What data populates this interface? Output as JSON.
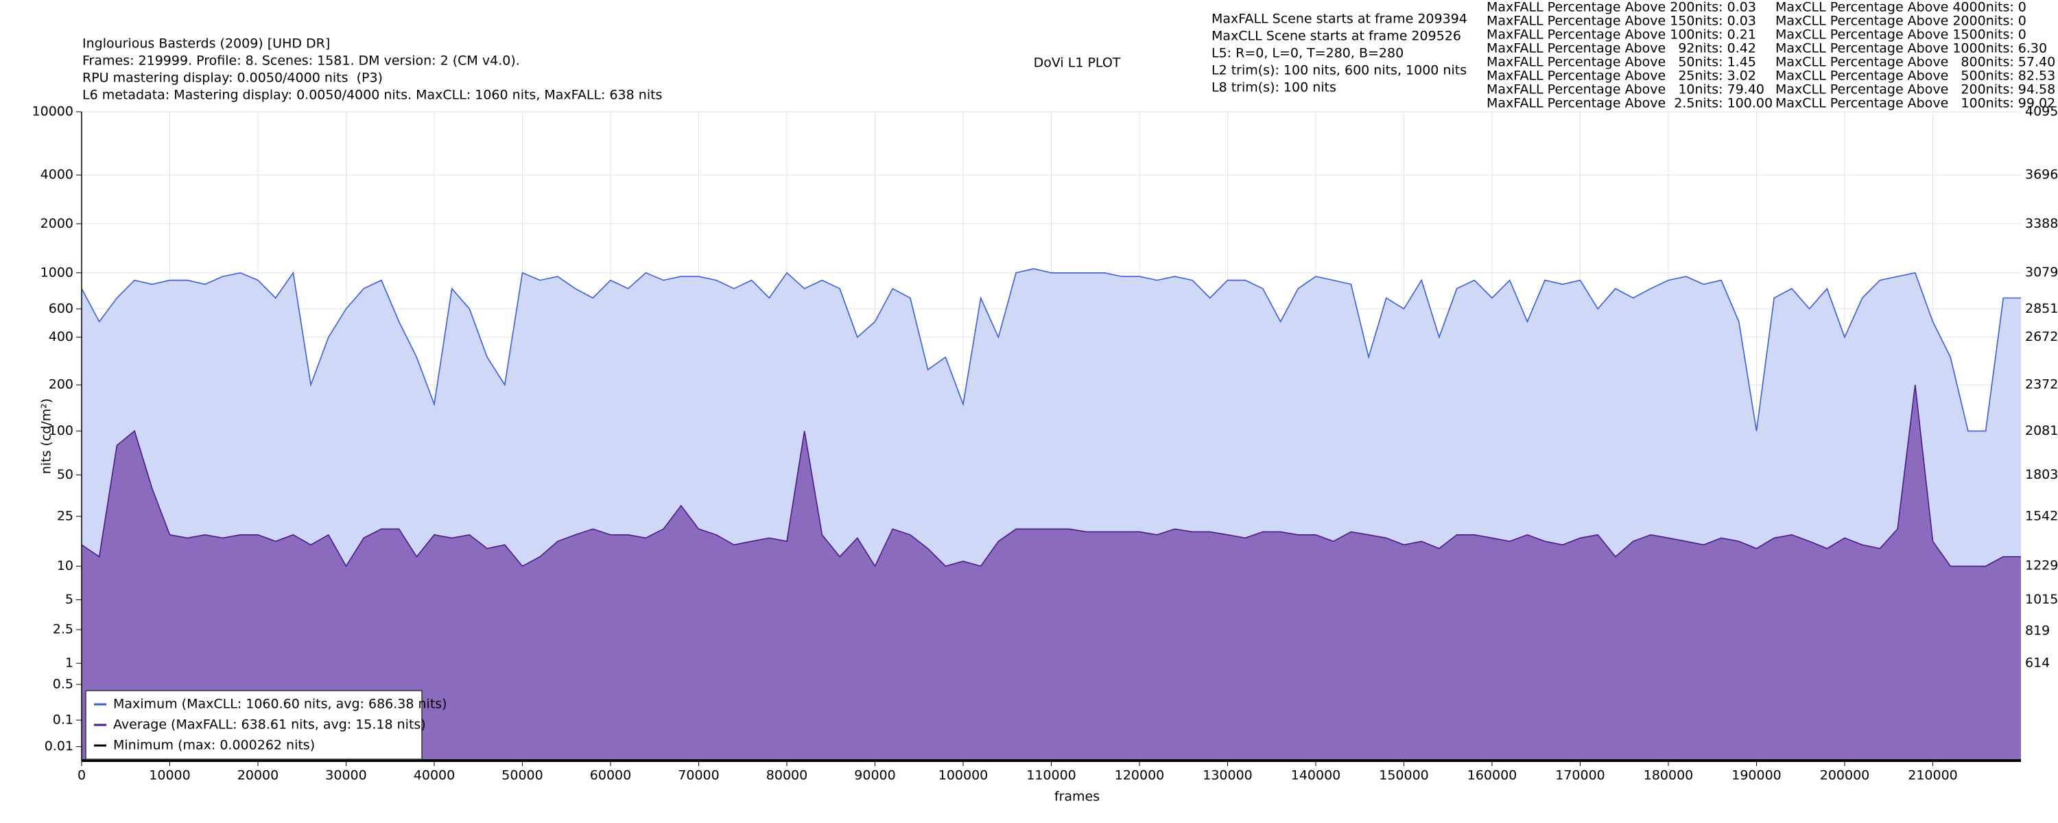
{
  "chart_data": {
    "type": "line",
    "title": "DoVi L1 PLOT",
    "header_lines": [
      "Inglourious Basterds (2009) [UHD DR]",
      "Frames: 219999. Profile: 8. Scenes: 1581. DM version: 2 (CM v4.0).",
      "RPU mastering display: 0.0050/4000 nits  (P3)",
      "L6 metadata: Mastering display: 0.0050/4000 nits. MaxCLL: 1060 nits, MaxFALL: 638 nits"
    ],
    "scene_info": [
      "MaxFALL Scene starts at frame 209394",
      "MaxCLL Scene starts at frame 209526",
      "L5: R=0, L=0, T=280, B=280",
      "L2 trim(s): 100 nits, 600 nits, 1000 nits",
      "L8 trim(s): 100 nits"
    ],
    "maxfall_percentages": [
      "MaxFALL Percentage Above 200nits: 0.03",
      "MaxFALL Percentage Above 150nits: 0.03",
      "MaxFALL Percentage Above 100nits: 0.21",
      "MaxFALL Percentage Above   92nits: 0.42",
      "MaxFALL Percentage Above   50nits: 1.45",
      "MaxFALL Percentage Above   25nits: 3.02",
      "MaxFALL Percentage Above   10nits: 79.40",
      "MaxFALL Percentage Above  2.5nits: 100.00"
    ],
    "maxcll_percentages": [
      "MaxCLL Percentage Above 4000nits: 0",
      "MaxCLL Percentage Above 2000nits: 0",
      "MaxCLL Percentage Above 1500nits: 0",
      "MaxCLL Percentage Above 1000nits: 6.30",
      "MaxCLL Percentage Above   800nits: 57.40",
      "MaxCLL Percentage Above   500nits: 82.53",
      "MaxCLL Percentage Above   200nits: 94.58",
      "MaxCLL Percentage Above   100nits: 99.02"
    ],
    "x_label": "frames",
    "y_label": "nits (cd/m²)",
    "y_scale": "pq",
    "grid": true,
    "legend": "lower left",
    "xlim": [
      0,
      219999
    ],
    "xticks": [
      0,
      10000,
      20000,
      30000,
      40000,
      50000,
      60000,
      70000,
      80000,
      90000,
      100000,
      110000,
      120000,
      130000,
      140000,
      150000,
      160000,
      170000,
      180000,
      190000,
      200000,
      210000
    ],
    "ylim": [
      0,
      10000
    ],
    "yticks": [
      0.01,
      0.1,
      0.5,
      1,
      2.5,
      5,
      10,
      25,
      50,
      100,
      200,
      400,
      600,
      1000,
      2000,
      4000,
      10000
    ],
    "y2lim": [
      0,
      4095
    ],
    "y2ticks": [
      614,
      819,
      1015,
      1229,
      1542,
      1803,
      2081,
      2372,
      2672,
      2851,
      3079,
      3388,
      3696,
      4095
    ],
    "x": [
      0,
      2000,
      4000,
      6000,
      8000,
      10000,
      12000,
      14000,
      16000,
      18000,
      20000,
      22000,
      24000,
      26000,
      28000,
      30000,
      32000,
      34000,
      36000,
      38000,
      40000,
      42000,
      44000,
      46000,
      48000,
      50000,
      52000,
      54000,
      56000,
      58000,
      60000,
      62000,
      64000,
      66000,
      68000,
      70000,
      72000,
      74000,
      76000,
      78000,
      80000,
      82000,
      84000,
      86000,
      88000,
      90000,
      92000,
      94000,
      96000,
      98000,
      100000,
      102000,
      104000,
      106000,
      108000,
      110000,
      112000,
      114000,
      116000,
      118000,
      120000,
      122000,
      124000,
      126000,
      128000,
      130000,
      132000,
      134000,
      136000,
      138000,
      140000,
      142000,
      144000,
      146000,
      148000,
      150000,
      152000,
      154000,
      156000,
      158000,
      160000,
      162000,
      164000,
      166000,
      168000,
      170000,
      172000,
      174000,
      176000,
      178000,
      180000,
      182000,
      184000,
      186000,
      188000,
      190000,
      192000,
      194000,
      196000,
      198000,
      200000,
      202000,
      204000,
      206000,
      208000,
      210000,
      212000,
      214000,
      216000,
      218000,
      219999
    ],
    "series": [
      {
        "name": "Maximum (MaxCLL: 1060.60 nits, avg: 686.38 nits)",
        "color": "#3a5fd9",
        "fill": "#cfd8f6",
        "values": [
          800,
          500,
          700,
          900,
          850,
          900,
          900,
          850,
          950,
          1000,
          900,
          700,
          1000,
          200,
          400,
          600,
          800,
          900,
          500,
          300,
          150,
          800,
          600,
          300,
          200,
          1000,
          900,
          950,
          800,
          700,
          900,
          800,
          1000,
          900,
          950,
          950,
          900,
          800,
          900,
          700,
          1000,
          800,
          900,
          800,
          400,
          500,
          800,
          700,
          250,
          300,
          150,
          700,
          400,
          1000,
          1060,
          1000,
          1000,
          1000,
          1000,
          950,
          950,
          900,
          950,
          900,
          700,
          900,
          900,
          800,
          500,
          800,
          950,
          900,
          850,
          300,
          700,
          600,
          900,
          400,
          800,
          900,
          700,
          900,
          500,
          900,
          850,
          900,
          600,
          800,
          700,
          800,
          900,
          950,
          850,
          900,
          500,
          100,
          700,
          800,
          600,
          800,
          400,
          700,
          900,
          950,
          1000,
          500,
          300,
          100,
          100,
          700,
          700
        ]
      },
      {
        "name": "Average (MaxFALL: 638.61 nits, avg: 15.18 nits)",
        "color": "#4a1a8c",
        "fill": "#8a6bbd",
        "values": [
          15,
          12,
          80,
          100,
          40,
          18,
          17,
          18,
          17,
          18,
          18,
          16,
          18,
          15,
          18,
          10,
          17,
          20,
          20,
          12,
          18,
          17,
          18,
          14,
          15,
          10,
          12,
          16,
          18,
          20,
          18,
          18,
          17,
          20,
          30,
          20,
          18,
          15,
          16,
          17,
          16,
          100,
          18,
          12,
          17,
          10,
          20,
          18,
          14,
          10,
          11,
          10,
          16,
          20,
          20,
          20,
          20,
          19,
          19,
          19,
          19,
          18,
          20,
          19,
          19,
          18,
          17,
          19,
          19,
          18,
          18,
          16,
          19,
          18,
          17,
          15,
          16,
          14,
          18,
          18,
          17,
          16,
          18,
          16,
          15,
          17,
          18,
          12,
          16,
          18,
          17,
          16,
          15,
          17,
          16,
          14,
          17,
          18,
          16,
          14,
          17,
          15,
          14,
          20,
          200,
          16,
          10,
          10,
          10,
          12,
          12
        ]
      },
      {
        "name": "Minimum (max: 0.000262 nits)",
        "color": "#000000",
        "values": [
          0,
          0,
          0,
          0,
          0,
          0,
          0,
          0,
          0,
          0,
          0,
          0,
          0,
          0,
          0,
          0,
          0,
          0,
          0,
          0,
          0,
          0,
          0,
          0,
          0,
          0,
          0,
          0,
          0,
          0,
          0,
          0,
          0,
          0,
          0,
          0,
          0,
          0,
          0,
          0,
          0,
          0,
          0,
          0,
          0,
          0,
          0,
          0,
          0,
          0,
          0,
          0,
          0,
          0,
          0,
          0,
          0,
          0,
          0,
          0,
          0,
          0,
          0,
          0,
          0,
          0,
          0,
          0,
          0,
          0,
          0,
          0,
          0,
          0,
          0,
          0,
          0,
          0,
          0,
          0,
          0,
          0,
          0,
          0,
          0,
          0,
          0,
          0,
          0,
          0,
          0,
          0,
          0,
          0,
          0,
          0,
          0,
          0,
          0,
          0,
          0,
          0,
          0,
          0,
          0,
          0,
          0,
          0,
          0,
          0,
          0
        ]
      }
    ]
  }
}
